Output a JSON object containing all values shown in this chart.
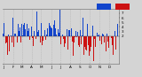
{
  "background_color": "#d4d4d4",
  "plot_bg_color": "#d4d4d4",
  "grid_color": "#aaaaaa",
  "n_points": 365,
  "seed": 42,
  "blue_color": "#1144cc",
  "red_color": "#cc1111",
  "ylim": [
    -60,
    60
  ],
  "ytick_values": [
    50,
    40,
    30,
    20,
    10,
    0
  ],
  "ytick_labels": [
    "7",
    "6",
    "5",
    "4",
    "3",
    "2"
  ],
  "bar_width": 0.85,
  "tick_fontsize": 3.0,
  "month_positions": [
    0,
    31,
    59,
    90,
    120,
    151,
    181,
    212,
    243,
    273,
    304,
    334
  ],
  "month_labels": [
    "J",
    "F",
    "M",
    "A",
    "M",
    "J",
    "J",
    "A",
    "S",
    "O",
    "N",
    "D"
  ],
  "legend_blue": "#1144cc",
  "legend_red": "#cc1111"
}
